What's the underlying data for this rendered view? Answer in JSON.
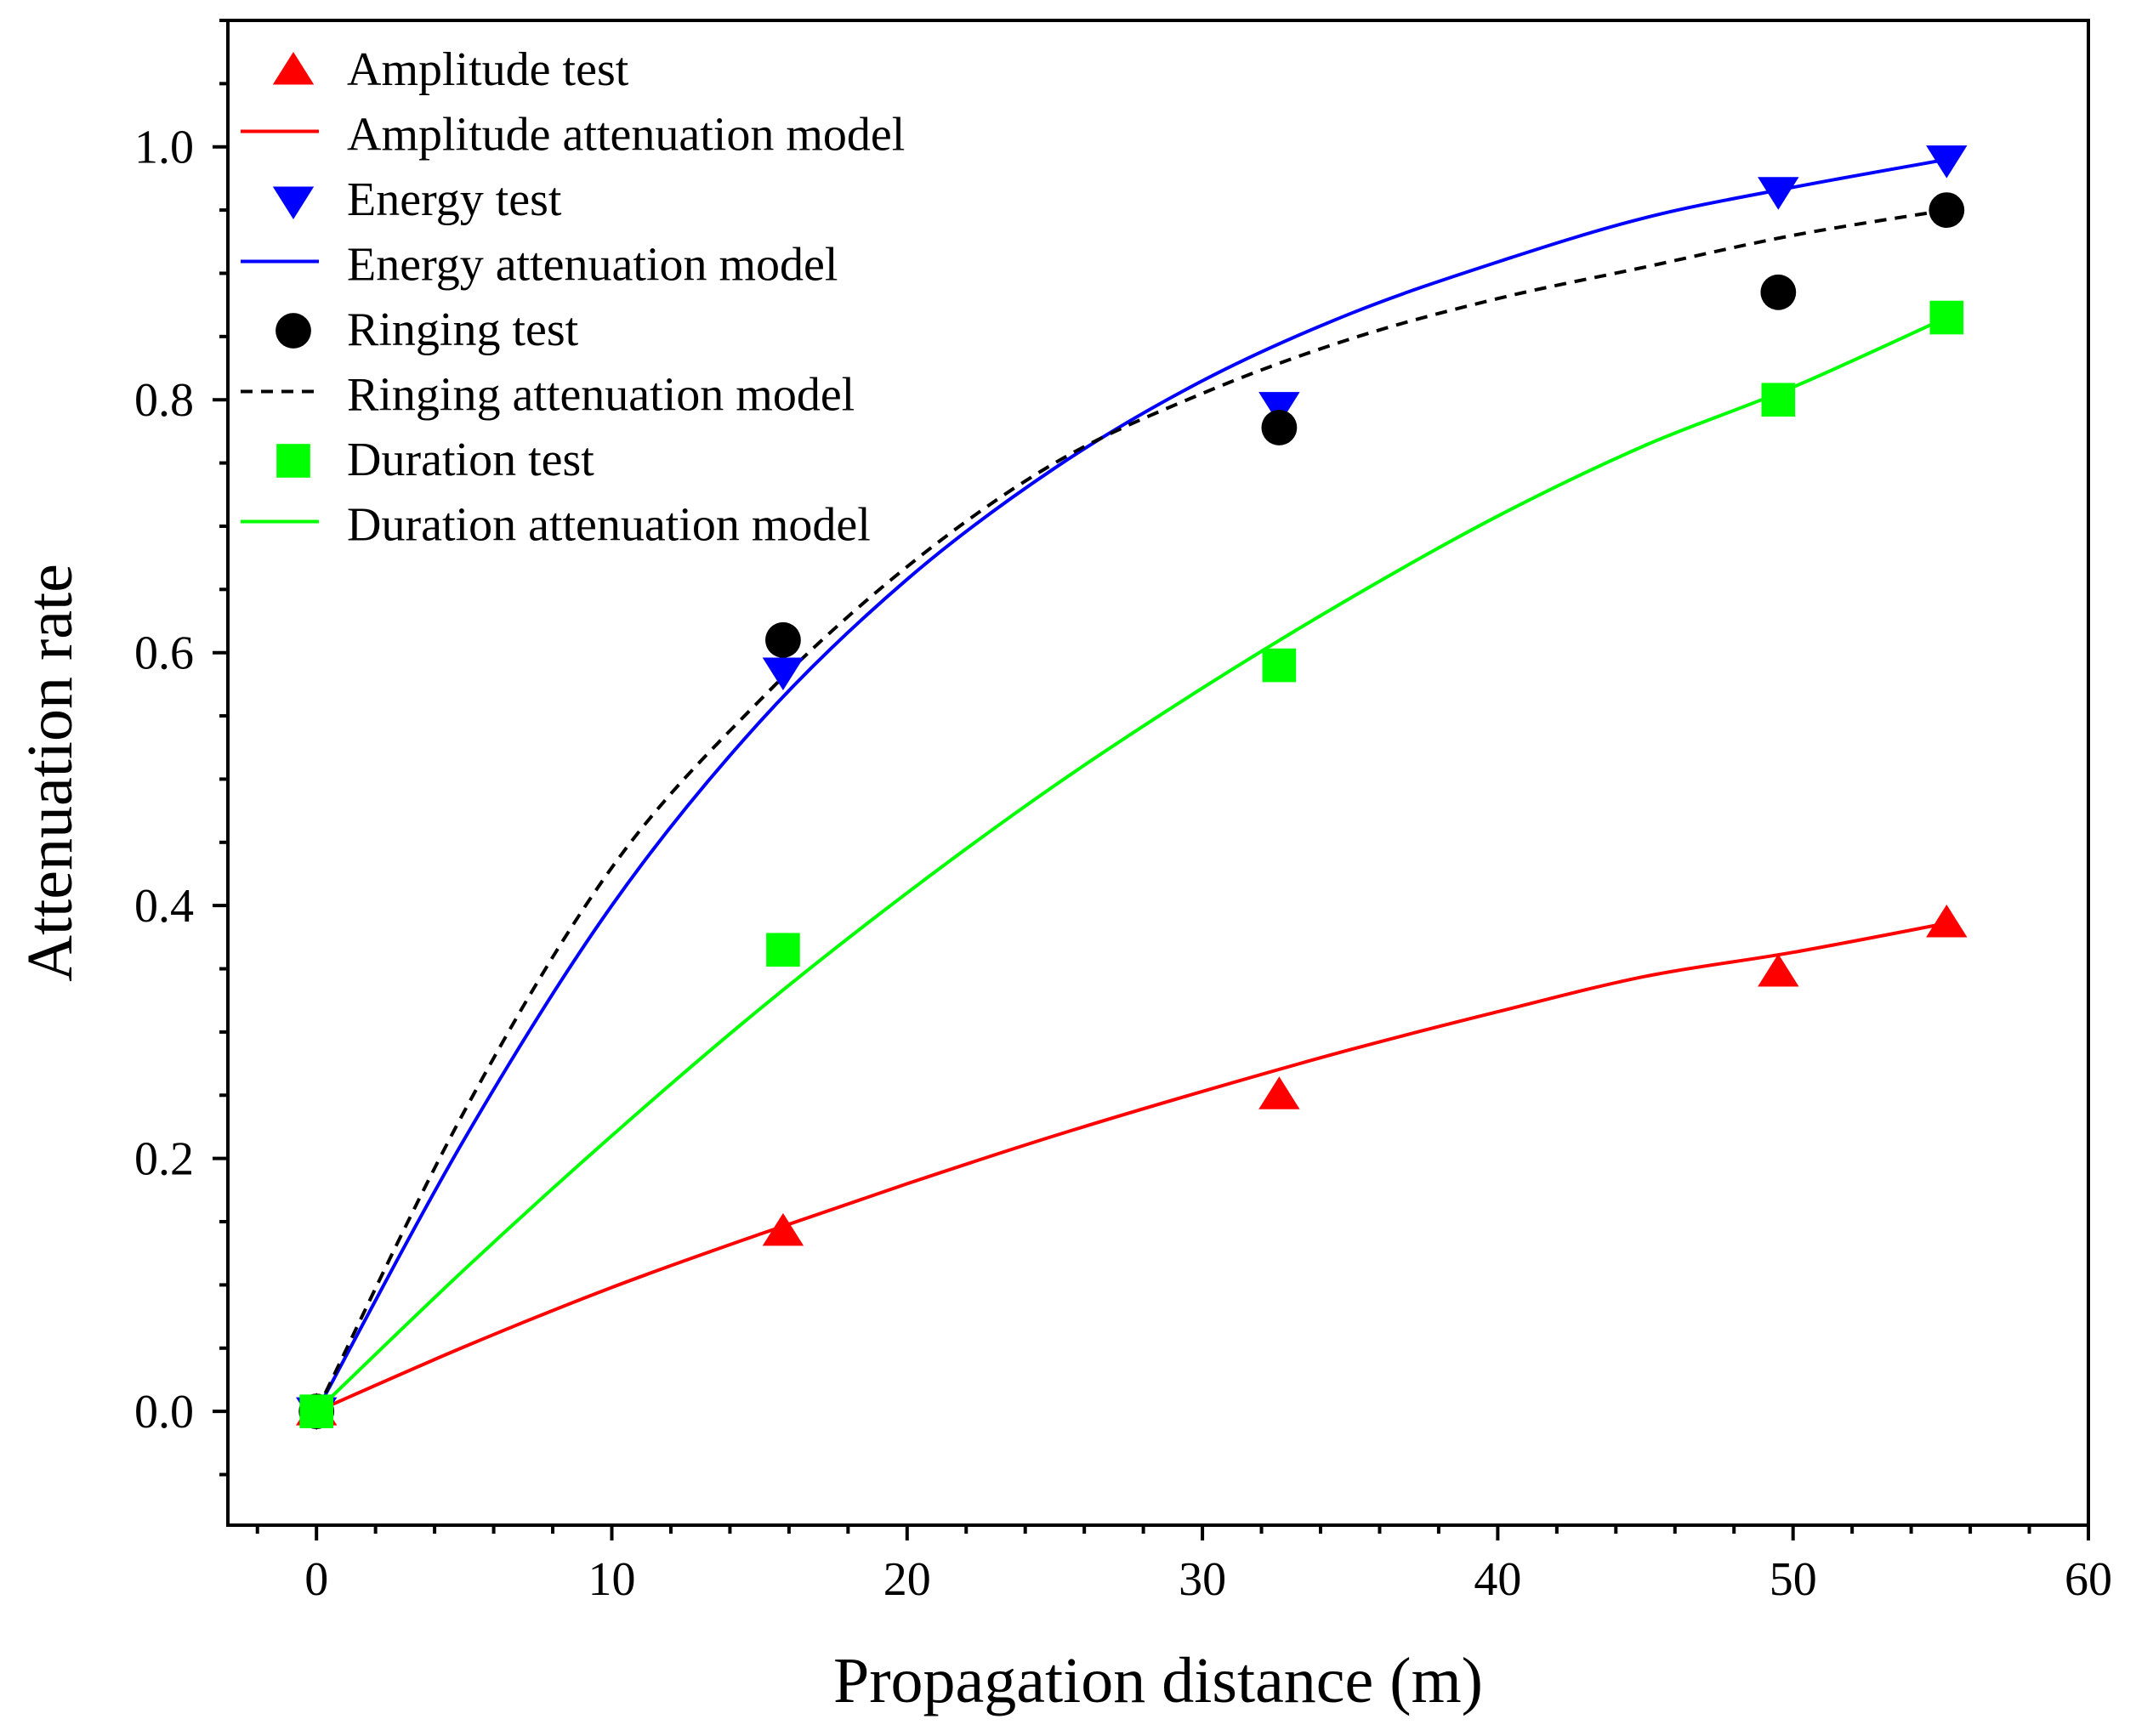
{
  "chart_data": {
    "type": "scatter",
    "xlabel": "Propagation distance (m)",
    "ylabel": "Attenuation rate",
    "xlim": [
      -3,
      60
    ],
    "ylim": [
      -0.09,
      1.1
    ],
    "xticks": [
      0,
      10,
      20,
      30,
      40,
      50,
      60
    ],
    "xtick_labels": [
      "0",
      "10",
      "20",
      "30",
      "40",
      "50",
      "60"
    ],
    "yticks": [
      0.0,
      0.2,
      0.4,
      0.6,
      0.8,
      1.0
    ],
    "ytick_labels": [
      "0.0",
      "0.2",
      "0.4",
      "0.6",
      "0.8",
      "1.0"
    ],
    "grid": false,
    "legend_position": "top-left",
    "series": [
      {
        "name": "Amplitude test",
        "kind": "points",
        "marker": "triangle-up",
        "color": "#ff0000",
        "x": [
          0,
          15.8,
          32.6,
          49.5,
          55.2
        ],
        "y": [
          0.0,
          0.142,
          0.25,
          0.347,
          0.386
        ]
      },
      {
        "name": "Amplitude attenuation model",
        "kind": "line",
        "dash": "solid",
        "color": "#ff0000",
        "x": [
          0,
          5,
          10,
          15,
          20,
          25,
          30,
          35,
          40,
          45,
          50,
          55.2
        ],
        "y": [
          0.0,
          0.051,
          0.098,
          0.14,
          0.18,
          0.218,
          0.253,
          0.286,
          0.316,
          0.344,
          0.363,
          0.386
        ]
      },
      {
        "name": "Energy test",
        "kind": "points",
        "marker": "triangle-down",
        "color": "#0000ff",
        "x": [
          0,
          15.8,
          32.6,
          49.5,
          55.2
        ],
        "y": [
          0.0,
          0.585,
          0.795,
          0.965,
          0.99
        ]
      },
      {
        "name": "Energy attenuation model",
        "kind": "line",
        "dash": "solid",
        "color": "#0000ff",
        "x": [
          0,
          5,
          10,
          15,
          20,
          25,
          30,
          35,
          40,
          45,
          50,
          55.2
        ],
        "y": [
          0.0,
          0.215,
          0.4,
          0.545,
          0.658,
          0.746,
          0.815,
          0.868,
          0.909,
          0.944,
          0.968,
          0.99
        ]
      },
      {
        "name": "Ringing test",
        "kind": "points",
        "marker": "circle",
        "color": "#000000",
        "x": [
          0,
          15.8,
          32.6,
          49.5,
          55.2
        ],
        "y": [
          0.0,
          0.61,
          0.778,
          0.885,
          0.95
        ]
      },
      {
        "name": "Ringing attenuation model",
        "kind": "line",
        "dash": "dashed",
        "color": "#000000",
        "x": [
          0,
          5,
          10,
          15,
          20,
          25,
          30,
          35,
          40,
          45,
          50,
          55.2
        ],
        "y": [
          0.0,
          0.237,
          0.43,
          0.562,
          0.668,
          0.75,
          0.805,
          0.848,
          0.88,
          0.905,
          0.93,
          0.95
        ]
      },
      {
        "name": "Duration test",
        "kind": "points",
        "marker": "square",
        "color": "#00ff00",
        "x": [
          0,
          15.8,
          32.6,
          49.5,
          55.2
        ],
        "y": [
          0.0,
          0.365,
          0.59,
          0.8,
          0.865
        ]
      },
      {
        "name": "Duration attenuation model",
        "kind": "line",
        "dash": "solid",
        "color": "#00ff00",
        "x": [
          0,
          5,
          10,
          15,
          20,
          25,
          30,
          35,
          40,
          45,
          50,
          55.2
        ],
        "y": [
          0.0,
          0.112,
          0.218,
          0.318,
          0.41,
          0.495,
          0.572,
          0.643,
          0.708,
          0.764,
          0.81,
          0.865
        ]
      }
    ]
  }
}
